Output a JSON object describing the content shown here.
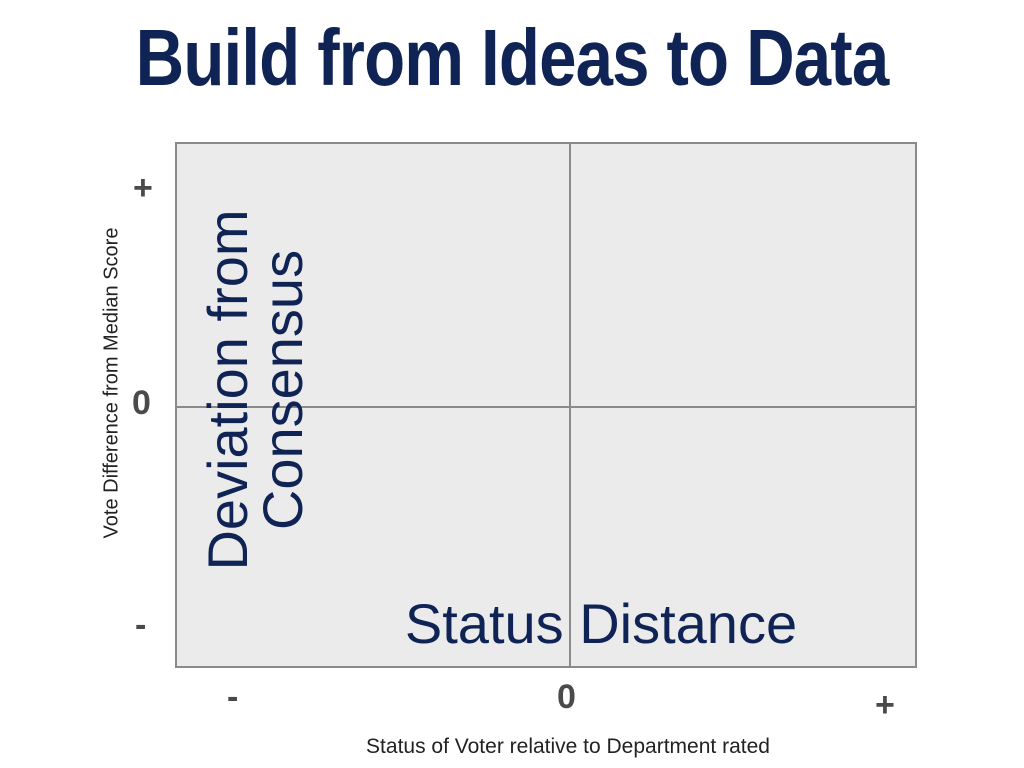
{
  "title": "Build from Ideas to Data",
  "colors": {
    "title": "#0f2355",
    "concept_text": "#0f2355",
    "plot_background": "#ebebeb",
    "axis_lines": "#8a8a8a",
    "tick_text": "#4a4a4a"
  },
  "quadrant_diagram": {
    "y_axis": {
      "label": "Vote Difference from Median Score",
      "ticks": {
        "top": "+",
        "middle": "0",
        "bottom": "-"
      }
    },
    "x_axis": {
      "label": "Status of Voter relative to Department rated",
      "ticks": {
        "left": "-",
        "middle": "0",
        "right": "+"
      }
    },
    "concepts": {
      "y_concept_line1": "Deviation from",
      "y_concept_line2": "Consensus",
      "x_concept": "Status Distance"
    }
  }
}
